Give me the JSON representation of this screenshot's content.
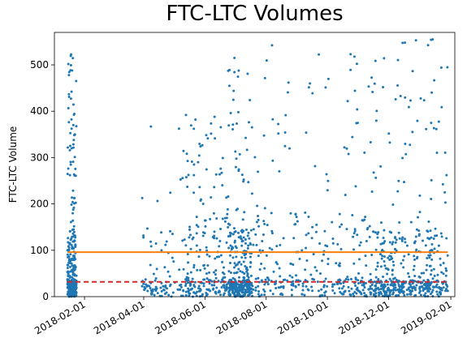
{
  "chart_data": {
    "type": "scatter",
    "title": "FTC-LTC Volumes",
    "xlabel": "",
    "ylabel": "FTC-LTC Volume",
    "x_range": [
      "2018-01-02",
      "2019-02-05"
    ],
    "ylim": [
      0,
      570
    ],
    "y_ticks": [
      0,
      100,
      200,
      300,
      400,
      500
    ],
    "x_ticks": [
      "2018-02-01",
      "2018-04-01",
      "2018-06-01",
      "2018-08-01",
      "2018-10-01",
      "2018-12-01",
      "2019-02-01"
    ],
    "grid": false,
    "legend": "none",
    "x_tick_rotation_deg": 30,
    "reference_lines": [
      {
        "y": 96,
        "x_start": "2018-01-15",
        "x_end": "2019-01-29",
        "color": "#ff7f0e",
        "style": "solid"
      },
      {
        "y": 32,
        "x_start": "2018-01-15",
        "x_end": "2019-01-29",
        "color": "#d62728",
        "style": "dashed"
      }
    ],
    "series": [
      {
        "color": "#1f77b4",
        "marker_size": 1.5,
        "clusters": [
          {
            "start": "2018-01-15",
            "end": "2018-01-24",
            "count": 360,
            "max": 525,
            "profile": "heavy"
          },
          {
            "start": "2018-03-30",
            "end": "2018-05-10",
            "count": 90,
            "max": 400,
            "profile": "light"
          },
          {
            "start": "2018-05-10",
            "end": "2018-06-24",
            "count": 220,
            "max": 395,
            "profile": "medium"
          },
          {
            "start": "2018-06-24",
            "end": "2018-07-18",
            "count": 330,
            "max": 520,
            "profile": "heavy"
          },
          {
            "start": "2018-07-18",
            "end": "2018-10-05",
            "count": 200,
            "max": 545,
            "profile": "medium"
          },
          {
            "start": "2018-10-05",
            "end": "2018-11-15",
            "count": 140,
            "max": 545,
            "profile": "medium"
          },
          {
            "start": "2018-11-15",
            "end": "2019-01-29",
            "count": 480,
            "max": 555,
            "profile": "heavy"
          }
        ]
      }
    ]
  }
}
